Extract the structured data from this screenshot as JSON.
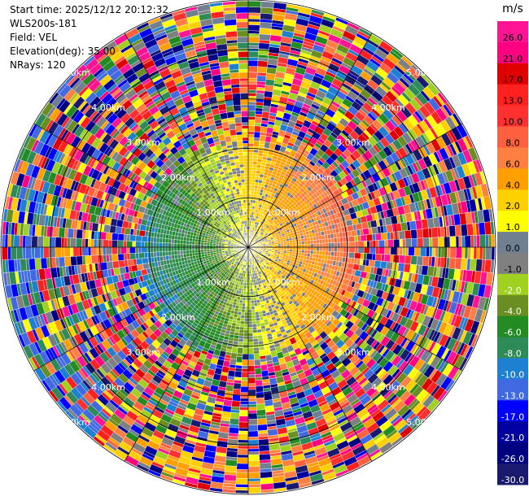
{
  "header": {
    "start_time": "Start time: 2025/12/12 20:12:32",
    "instrument": "WLS200s-181",
    "field": "Field: VEL",
    "elevation": "Elevation(deg): 35.00",
    "nrays": "NRays: 120"
  },
  "colors": {
    "background": "#ffffff",
    "ring_color": "#000000"
  },
  "chart_data": {
    "type": "heatmap",
    "projection": "polar (PPI)",
    "field": "VEL",
    "units": "m/s",
    "n_rays": 120,
    "range_rings": [
      {
        "range_km": 1.0,
        "label": "1.00km"
      },
      {
        "range_km": 2.0,
        "label": "2.00km"
      },
      {
        "range_km": 3.0,
        "label": "3.00km"
      },
      {
        "range_km": 4.0,
        "label": "4.00km"
      },
      {
        "range_km": 5.0,
        "label": "5.00km"
      }
    ],
    "max_range_km": 5.0,
    "colorbar": {
      "title": "m/s",
      "ticks": [
        "26.0",
        "21.0",
        "17.0",
        "13.0",
        "10.0",
        "8.0",
        "6.0",
        "4.0",
        "2.0",
        "1.0",
        "0.0",
        "-1.0",
        "-2.0",
        "-4.0",
        "-6.0",
        "-8.0",
        "-10.0",
        "-13.0",
        "-17.0",
        "-21.0",
        "-26.0",
        "-30.0"
      ],
      "colors": [
        "#ff1493",
        "#ff0080",
        "#e00000",
        "#ff2020",
        "#ff3030",
        "#ff6040",
        "#ff8040",
        "#ffa000",
        "#ffd000",
        "#ffff00",
        "#708090",
        "#808080",
        "#a0d020",
        "#6b8e23",
        "#228b22",
        "#2e8b57",
        "#1e80d0",
        "#4169e1",
        "#0000ff",
        "#0000a0",
        "#000080",
        "#191970"
      ]
    },
    "pattern": {
      "near_field_max_km": 2.2,
      "positive_azimuth_deg": 75,
      "negative_azimuth_deg": 255,
      "noise_start_km": 2.0
    }
  }
}
